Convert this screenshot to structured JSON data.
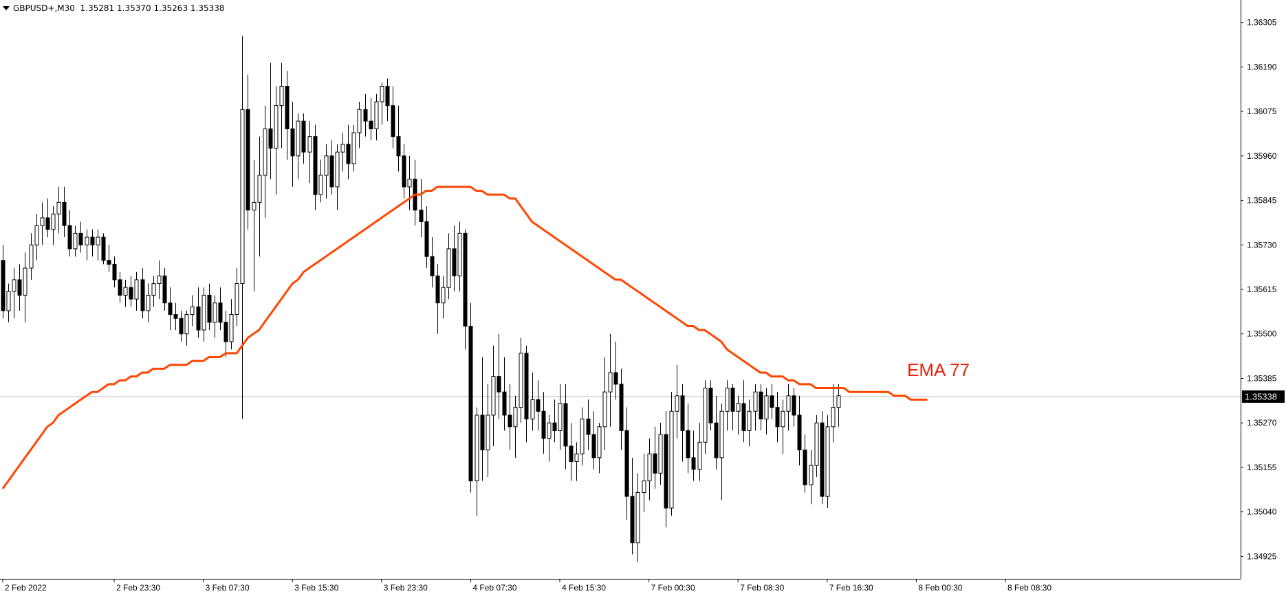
{
  "header": {
    "symbol": "GBPUSD+,M30",
    "open": "1.35281",
    "high": "1.35370",
    "low": "1.35263",
    "close": "1.35338"
  },
  "price_label": "1.35338",
  "ema_label": "EMA 77",
  "colors": {
    "ema": "#ff4500",
    "ema_label": "#e8220f",
    "candle": "#000000",
    "axis": "#000000",
    "bid_line": "#c0c0c0"
  },
  "chart_data": {
    "type": "candlestick",
    "symbol": "GBPUSD+",
    "timeframe": "M30",
    "ylim": [
      1.34867,
      1.36363
    ],
    "y_ticks": [
      "1.36305",
      "1.36190",
      "1.36075",
      "1.35960",
      "1.35845",
      "1.35730",
      "1.35615",
      "1.35500",
      "1.35385",
      "1.35270",
      "1.35155",
      "1.35040",
      "1.34925"
    ],
    "x_ticks": [
      {
        "label": "2 Feb 2022",
        "bar": 0
      },
      {
        "label": "2 Feb 23:30",
        "bar": 20
      },
      {
        "label": "3 Feb 07:30",
        "bar": 36
      },
      {
        "label": "3 Feb 15:30",
        "bar": 52
      },
      {
        "label": "3 Feb 23:30",
        "bar": 68
      },
      {
        "label": "4 Feb 07:30",
        "bar": 84
      },
      {
        "label": "4 Feb 15:30",
        "bar": 100
      },
      {
        "label": "7 Feb 00:30",
        "bar": 116
      },
      {
        "label": "7 Feb 08:30",
        "bar": 132
      },
      {
        "label": "7 Feb 16:30",
        "bar": 148
      },
      {
        "label": "8 Feb 00:30",
        "bar": 164
      },
      {
        "label": "8 Feb 08:30",
        "bar": 180
      }
    ],
    "current_price": 1.35338,
    "ema_period": 77,
    "ohlc": [
      [
        1.3569,
        1.3573,
        1.3554,
        1.3556
      ],
      [
        1.3556,
        1.3563,
        1.3553,
        1.3561
      ],
      [
        1.3561,
        1.3567,
        1.3554,
        1.3564
      ],
      [
        1.3564,
        1.3568,
        1.3556,
        1.356
      ],
      [
        1.356,
        1.3571,
        1.3553,
        1.3567
      ],
      [
        1.3567,
        1.3576,
        1.3564,
        1.3573
      ],
      [
        1.3573,
        1.3581,
        1.3569,
        1.3578
      ],
      [
        1.3578,
        1.3584,
        1.3573,
        1.358
      ],
      [
        1.358,
        1.3585,
        1.3575,
        1.3577
      ],
      [
        1.3577,
        1.3583,
        1.3573,
        1.3581
      ],
      [
        1.3581,
        1.3588,
        1.3576,
        1.3584
      ],
      [
        1.3584,
        1.3588,
        1.3575,
        1.3578
      ],
      [
        1.3578,
        1.3582,
        1.357,
        1.3572
      ],
      [
        1.3572,
        1.3578,
        1.357,
        1.3576
      ],
      [
        1.3576,
        1.3579,
        1.3571,
        1.3573
      ],
      [
        1.3573,
        1.3577,
        1.3569,
        1.3575
      ],
      [
        1.3575,
        1.3577,
        1.357,
        1.3573
      ],
      [
        1.3573,
        1.3577,
        1.3569,
        1.3575
      ],
      [
        1.3575,
        1.3576,
        1.3568,
        1.3569
      ],
      [
        1.3569,
        1.3573,
        1.3566,
        1.3568
      ],
      [
        1.3568,
        1.357,
        1.3562,
        1.3564
      ],
      [
        1.3564,
        1.3566,
        1.3558,
        1.356
      ],
      [
        1.356,
        1.3564,
        1.3557,
        1.3562
      ],
      [
        1.3562,
        1.3565,
        1.3557,
        1.3559
      ],
      [
        1.3559,
        1.3566,
        1.3556,
        1.3564
      ],
      [
        1.3564,
        1.3567,
        1.3554,
        1.3556
      ],
      [
        1.3556,
        1.3563,
        1.3553,
        1.356
      ],
      [
        1.356,
        1.3565,
        1.3557,
        1.3563
      ],
      [
        1.3563,
        1.3569,
        1.3559,
        1.3565
      ],
      [
        1.3565,
        1.3567,
        1.3556,
        1.3558
      ],
      [
        1.3558,
        1.3562,
        1.3551,
        1.3555
      ],
      [
        1.3555,
        1.3558,
        1.3551,
        1.3554
      ],
      [
        1.3554,
        1.3556,
        1.3548,
        1.355
      ],
      [
        1.355,
        1.3556,
        1.3547,
        1.3555
      ],
      [
        1.3555,
        1.356,
        1.3552,
        1.3557
      ],
      [
        1.3557,
        1.3562,
        1.3549,
        1.3551
      ],
      [
        1.3551,
        1.3562,
        1.3548,
        1.356
      ],
      [
        1.356,
        1.3563,
        1.3551,
        1.3553
      ],
      [
        1.3553,
        1.356,
        1.3549,
        1.3558
      ],
      [
        1.3558,
        1.3562,
        1.3551,
        1.3553
      ],
      [
        1.3553,
        1.3556,
        1.3544,
        1.3548
      ],
      [
        1.3548,
        1.3559,
        1.3546,
        1.3555
      ],
      [
        1.3555,
        1.3567,
        1.3552,
        1.3563
      ],
      [
        1.3563,
        1.3627,
        1.3528,
        1.3608
      ],
      [
        1.3608,
        1.3617,
        1.3577,
        1.3582
      ],
      [
        1.3582,
        1.3595,
        1.3561,
        1.3584
      ],
      [
        1.3584,
        1.3601,
        1.357,
        1.3591
      ],
      [
        1.3591,
        1.3609,
        1.358,
        1.3603
      ],
      [
        1.3603,
        1.362,
        1.359,
        1.3598
      ],
      [
        1.3598,
        1.3614,
        1.3586,
        1.3609
      ],
      [
        1.3609,
        1.362,
        1.3598,
        1.3614
      ],
      [
        1.3614,
        1.3618,
        1.3595,
        1.3603
      ],
      [
        1.3603,
        1.361,
        1.3588,
        1.3596
      ],
      [
        1.3596,
        1.3607,
        1.359,
        1.3605
      ],
      [
        1.3605,
        1.3607,
        1.3594,
        1.3597
      ],
      [
        1.3597,
        1.3605,
        1.3589,
        1.3601
      ],
      [
        1.3601,
        1.3604,
        1.3582,
        1.3586
      ],
      [
        1.3586,
        1.3595,
        1.3584,
        1.3591
      ],
      [
        1.3591,
        1.3599,
        1.3585,
        1.3596
      ],
      [
        1.3596,
        1.36,
        1.3586,
        1.3588
      ],
      [
        1.3588,
        1.3599,
        1.3582,
        1.3597
      ],
      [
        1.3597,
        1.3602,
        1.3592,
        1.3599
      ],
      [
        1.3599,
        1.3604,
        1.359,
        1.3594
      ],
      [
        1.3594,
        1.3604,
        1.3592,
        1.3602
      ],
      [
        1.3602,
        1.361,
        1.3598,
        1.3608
      ],
      [
        1.3608,
        1.3612,
        1.3601,
        1.3605
      ],
      [
        1.3605,
        1.3611,
        1.36,
        1.3603
      ],
      [
        1.3603,
        1.3612,
        1.36,
        1.361
      ],
      [
        1.361,
        1.3615,
        1.3604,
        1.3614
      ],
      [
        1.3614,
        1.3616,
        1.3605,
        1.3609
      ],
      [
        1.3609,
        1.3614,
        1.3598,
        1.3601
      ],
      [
        1.3601,
        1.3609,
        1.3592,
        1.3596
      ],
      [
        1.3596,
        1.3599,
        1.3585,
        1.3588
      ],
      [
        1.3588,
        1.3596,
        1.3582,
        1.359
      ],
      [
        1.359,
        1.3595,
        1.3578,
        1.3582
      ],
      [
        1.3582,
        1.359,
        1.3575,
        1.3579
      ],
      [
        1.3579,
        1.3583,
        1.3567,
        1.357
      ],
      [
        1.357,
        1.3575,
        1.3562,
        1.3565
      ],
      [
        1.3565,
        1.3568,
        1.355,
        1.3558
      ],
      [
        1.3558,
        1.3565,
        1.3554,
        1.3562
      ],
      [
        1.3562,
        1.3576,
        1.3559,
        1.3572
      ],
      [
        1.3572,
        1.3578,
        1.3561,
        1.3565
      ],
      [
        1.3565,
        1.3579,
        1.3561,
        1.3576
      ],
      [
        1.3576,
        1.3577,
        1.3546,
        1.3552
      ],
      [
        1.3552,
        1.3558,
        1.3509,
        1.3512
      ],
      [
        1.3512,
        1.3531,
        1.3503,
        1.3529
      ],
      [
        1.3529,
        1.3544,
        1.3512,
        1.352
      ],
      [
        1.352,
        1.3537,
        1.3513,
        1.3529
      ],
      [
        1.3529,
        1.3547,
        1.3521,
        1.3539
      ],
      [
        1.3539,
        1.355,
        1.3528,
        1.3535
      ],
      [
        1.3535,
        1.3544,
        1.3525,
        1.3529
      ],
      [
        1.3529,
        1.3537,
        1.352,
        1.3526
      ],
      [
        1.3526,
        1.3534,
        1.3518,
        1.3531
      ],
      [
        1.3531,
        1.3549,
        1.3527,
        1.3545
      ],
      [
        1.3545,
        1.3547,
        1.3522,
        1.3528
      ],
      [
        1.3528,
        1.354,
        1.3525,
        1.3533
      ],
      [
        1.3533,
        1.3538,
        1.3525,
        1.353
      ],
      [
        1.353,
        1.3535,
        1.3519,
        1.3523
      ],
      [
        1.3523,
        1.3529,
        1.3517,
        1.3527
      ],
      [
        1.3527,
        1.3533,
        1.3522,
        1.3525
      ],
      [
        1.3525,
        1.3537,
        1.352,
        1.3532
      ],
      [
        1.3532,
        1.3537,
        1.3515,
        1.3521
      ],
      [
        1.3521,
        1.3527,
        1.3512,
        1.3517
      ],
      [
        1.3517,
        1.3522,
        1.3512,
        1.3519
      ],
      [
        1.3519,
        1.3531,
        1.3516,
        1.3528
      ],
      [
        1.3528,
        1.3533,
        1.352,
        1.3524
      ],
      [
        1.3524,
        1.353,
        1.3515,
        1.3518
      ],
      [
        1.3518,
        1.3527,
        1.3514,
        1.3526
      ],
      [
        1.3526,
        1.3544,
        1.352,
        1.3535
      ],
      [
        1.3535,
        1.355,
        1.3526,
        1.354
      ],
      [
        1.354,
        1.3548,
        1.3533,
        1.3537
      ],
      [
        1.3537,
        1.3541,
        1.352,
        1.3525
      ],
      [
        1.3525,
        1.3531,
        1.3502,
        1.3508
      ],
      [
        1.3508,
        1.3518,
        1.3493,
        1.3496
      ],
      [
        1.3496,
        1.3514,
        1.3491,
        1.3509
      ],
      [
        1.3509,
        1.3519,
        1.3504,
        1.3512
      ],
      [
        1.3512,
        1.3523,
        1.3507,
        1.3519
      ],
      [
        1.3519,
        1.3526,
        1.351,
        1.3514
      ],
      [
        1.3514,
        1.3527,
        1.3511,
        1.3524
      ],
      [
        1.3524,
        1.353,
        1.35,
        1.3505
      ],
      [
        1.3505,
        1.3535,
        1.3503,
        1.353
      ],
      [
        1.353,
        1.3542,
        1.3523,
        1.3534
      ],
      [
        1.3534,
        1.3537,
        1.3517,
        1.3525
      ],
      [
        1.3525,
        1.3532,
        1.3514,
        1.3518
      ],
      [
        1.3518,
        1.3525,
        1.3512,
        1.3515
      ],
      [
        1.3515,
        1.3527,
        1.3512,
        1.3522
      ],
      [
        1.3522,
        1.3538,
        1.3519,
        1.3536
      ],
      [
        1.3536,
        1.3538,
        1.3525,
        1.3527
      ],
      [
        1.3527,
        1.3534,
        1.3515,
        1.3518
      ],
      [
        1.3518,
        1.3532,
        1.3507,
        1.353
      ],
      [
        1.353,
        1.3538,
        1.3525,
        1.3536
      ],
      [
        1.3536,
        1.3537,
        1.3525,
        1.353
      ],
      [
        1.353,
        1.3534,
        1.3524,
        1.3532
      ],
      [
        1.3532,
        1.3538,
        1.3522,
        1.3525
      ],
      [
        1.3525,
        1.3533,
        1.3521,
        1.353
      ],
      [
        1.353,
        1.3537,
        1.3525,
        1.3535
      ],
      [
        1.3535,
        1.3537,
        1.3525,
        1.3528
      ],
      [
        1.3528,
        1.3536,
        1.3524,
        1.3534
      ],
      [
        1.3534,
        1.3537,
        1.3528,
        1.3531
      ],
      [
        1.3531,
        1.3535,
        1.3522,
        1.3526
      ],
      [
        1.3526,
        1.3533,
        1.3519,
        1.353
      ],
      [
        1.353,
        1.3537,
        1.3525,
        1.3534
      ],
      [
        1.3534,
        1.3536,
        1.3526,
        1.3529
      ],
      [
        1.3529,
        1.3534,
        1.3516,
        1.352
      ],
      [
        1.352,
        1.3524,
        1.3509,
        1.3511
      ],
      [
        1.3511,
        1.352,
        1.3506,
        1.3516
      ],
      [
        1.3516,
        1.3529,
        1.3513,
        1.3527
      ],
      [
        1.3527,
        1.353,
        1.3506,
        1.3508
      ],
      [
        1.3508,
        1.3529,
        1.3505,
        1.3526
      ],
      [
        1.3526,
        1.3537,
        1.3522,
        1.3531
      ],
      [
        1.3531,
        1.3537,
        1.3526,
        1.3534
      ]
    ],
    "ema_77": [
      1.351,
      1.3512,
      1.3514,
      1.3516,
      1.3518,
      1.352,
      1.3522,
      1.3524,
      1.3526,
      1.3527,
      1.3529,
      1.353,
      1.3531,
      1.3532,
      1.3533,
      1.3534,
      1.3535,
      1.3535,
      1.3536,
      1.3537,
      1.3537,
      1.3538,
      1.3538,
      1.3539,
      1.3539,
      1.354,
      1.354,
      1.3541,
      1.3541,
      1.3541,
      1.3542,
      1.3542,
      1.3542,
      1.3542,
      1.3543,
      1.3543,
      1.3543,
      1.3544,
      1.3544,
      1.3544,
      1.3545,
      1.3545,
      1.3545,
      1.3547,
      1.3549,
      1.355,
      1.3551,
      1.3553,
      1.3555,
      1.3557,
      1.3559,
      1.3561,
      1.3563,
      1.3564,
      1.3566,
      1.3567,
      1.3568,
      1.3569,
      1.357,
      1.3571,
      1.3572,
      1.3573,
      1.3574,
      1.3575,
      1.3576,
      1.3577,
      1.3578,
      1.3579,
      1.358,
      1.3581,
      1.3582,
      1.3583,
      1.3584,
      1.3585,
      1.3586,
      1.3586,
      1.3587,
      1.3587,
      1.3588,
      1.3588,
      1.3588,
      1.3588,
      1.3588,
      1.3588,
      1.3588,
      1.3587,
      1.3587,
      1.3586,
      1.3586,
      1.3586,
      1.3586,
      1.3585,
      1.3585,
      1.3583,
      1.3581,
      1.3579,
      1.3578,
      1.3577,
      1.3576,
      1.3575,
      1.3574,
      1.3573,
      1.3572,
      1.3571,
      1.357,
      1.3569,
      1.3568,
      1.3567,
      1.3566,
      1.3565,
      1.3564,
      1.3564,
      1.3563,
      1.3562,
      1.3561,
      1.356,
      1.3559,
      1.3558,
      1.3557,
      1.3556,
      1.3555,
      1.3554,
      1.3553,
      1.3552,
      1.3552,
      1.3551,
      1.3551,
      1.355,
      1.3549,
      1.3548,
      1.3546,
      1.3545,
      1.3544,
      1.3543,
      1.3542,
      1.3541,
      1.354,
      1.354,
      1.3539,
      1.3539,
      1.3539,
      1.3538,
      1.3538,
      1.3537,
      1.3537,
      1.3537,
      1.3536,
      1.3536,
      1.3536,
      1.3536,
      1.3536,
      1.3536,
      1.3535,
      1.3535,
      1.3535,
      1.3535,
      1.3535,
      1.3535,
      1.3535,
      1.3535,
      1.3534,
      1.3534,
      1.3534,
      1.3533,
      1.3533,
      1.3533,
      1.3533
    ]
  }
}
